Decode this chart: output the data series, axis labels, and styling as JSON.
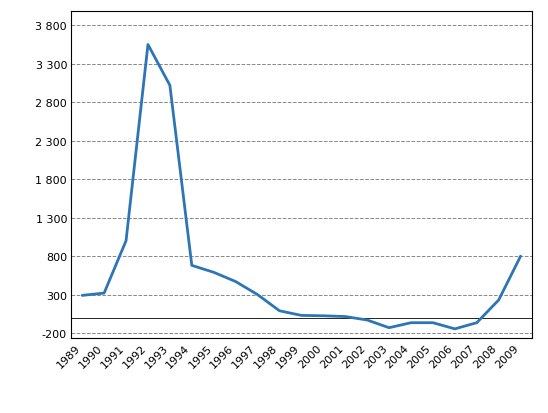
{
  "years": [
    1989,
    1990,
    1991,
    1992,
    1993,
    1994,
    1995,
    1996,
    1997,
    1998,
    1999,
    2000,
    2001,
    2002,
    2003,
    2004,
    2005,
    2006,
    2007,
    2008,
    2009
  ],
  "values": [
    290,
    320,
    1000,
    3550,
    3020,
    680,
    590,
    470,
    300,
    90,
    30,
    25,
    15,
    -30,
    -130,
    -65,
    -65,
    -145,
    -65,
    230,
    800
  ],
  "line_color": "#2E75B6",
  "line_width": 2.0,
  "background_color": "#ffffff",
  "plot_bg_color": "#ffffff",
  "yticks": [
    -200,
    300,
    800,
    1300,
    1800,
    2300,
    2800,
    3300,
    3800
  ],
  "ylim": [
    -270,
    3980
  ],
  "xlim": [
    1988.5,
    2009.5
  ],
  "grid_color": "#888888",
  "zero_line_color": "#000000",
  "spine_color": "#000000"
}
